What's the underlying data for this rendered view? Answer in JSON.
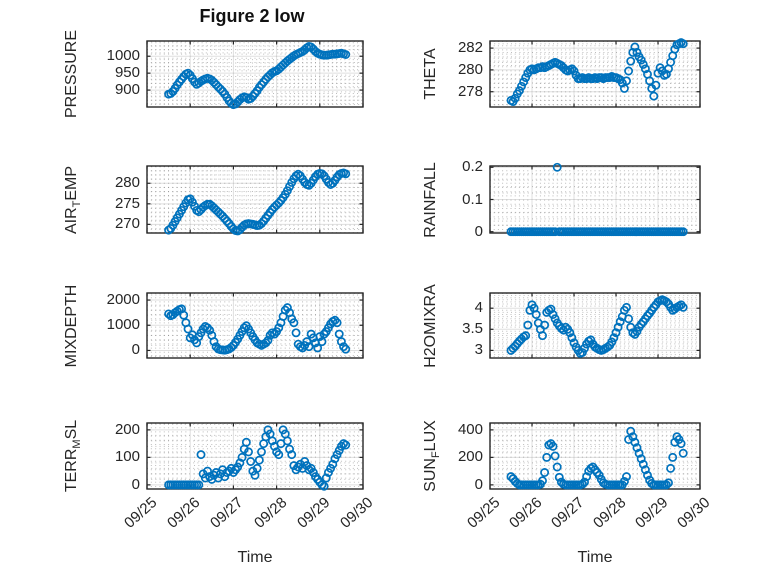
{
  "title": "Figure 2 low",
  "marker_color": "#0072BD",
  "axis": {
    "xlabel": "Time",
    "xlim": [
      0,
      5
    ],
    "x_unit": "days since 09/25",
    "xticks": [
      0,
      1,
      2,
      3,
      4,
      5
    ],
    "xticklabels": [
      "09/25",
      "09/26",
      "09/27",
      "09/28",
      "09/29",
      "09/30"
    ],
    "grid": "on",
    "minor_grid": "dotted"
  },
  "chart_data": [
    {
      "type": "scatter",
      "name": "pressure",
      "row": 0,
      "col": 0,
      "ylabel": "PRESSURE",
      "ylabel_parts": [
        {
          "t": "PRESSURE",
          "sub": false
        }
      ],
      "ylim": [
        850,
        1045
      ],
      "yticks": [
        900,
        950,
        1000
      ],
      "yticklabels": [
        "900",
        "950",
        "1000"
      ],
      "x_start": 0.5,
      "x_step": 0.05,
      "values": [
        888,
        890,
        896,
        905,
        915,
        924,
        932,
        940,
        947,
        950,
        944,
        934,
        924,
        917,
        921,
        926,
        930,
        933,
        935,
        933,
        929,
        923,
        916,
        909,
        903,
        896,
        888,
        878,
        868,
        861,
        857,
        859,
        865,
        872,
        877,
        880,
        878,
        873,
        875,
        882,
        890,
        898,
        908,
        916,
        924,
        932,
        939,
        945,
        951,
        955,
        957,
        962,
        968,
        974,
        980,
        986,
        991,
        996,
        1001,
        1005,
        1008,
        1011,
        1014,
        1019,
        1025,
        1029,
        1027,
        1021,
        1014,
        1009,
        1006,
        1004,
        1003,
        1003,
        1004,
        1005,
        1006,
        1006,
        1007,
        1008,
        1009,
        1007,
        1005
      ]
    },
    {
      "type": "scatter",
      "name": "theta",
      "row": 0,
      "col": 1,
      "ylabel": "THETA",
      "ylabel_parts": [
        {
          "t": "THETA",
          "sub": false
        }
      ],
      "ylim": [
        276.6,
        282.65
      ],
      "yticks": [
        278,
        280,
        282
      ],
      "yticklabels": [
        "278",
        "280",
        "282"
      ],
      "x_start": 0.5,
      "x_step": 0.05,
      "values": [
        277.2,
        277.1,
        277.4,
        277.8,
        278.1,
        278.5,
        278.9,
        279.3,
        279.7,
        280.0,
        280.1,
        280.0,
        280.1,
        280.2,
        280.2,
        280.3,
        280.2,
        280.3,
        280.4,
        280.5,
        280.6,
        280.7,
        280.6,
        280.5,
        280.4,
        280.2,
        280.0,
        279.9,
        280.0,
        280.1,
        279.9,
        279.5,
        279.2,
        279.2,
        279.3,
        279.2,
        279.2,
        279.3,
        279.2,
        279.2,
        279.3,
        279.2,
        279.3,
        279.3,
        279.2,
        279.3,
        279.3,
        279.3,
        279.4,
        279.3,
        279.3,
        279.2,
        279.1,
        278.8,
        278.3,
        279.0,
        279.9,
        280.8,
        281.6,
        282.1,
        281.6,
        281.2,
        280.9,
        280.5,
        280.1,
        279.6,
        279.0,
        278.3,
        277.6,
        278.6,
        279.7,
        280.2,
        279.9,
        279.5,
        279.6,
        280.1,
        280.7,
        281.3,
        281.9,
        282.3,
        282.4,
        282.5,
        282.4
      ]
    },
    {
      "type": "scatter",
      "name": "air_temp",
      "row": 1,
      "col": 0,
      "ylabel": "AIR_TEMP",
      "ylabel_parts": [
        {
          "t": "AIR",
          "sub": false
        },
        {
          "t": "T",
          "sub": true
        },
        {
          "t": "EMP",
          "sub": false
        }
      ],
      "ylim": [
        267.9,
        284.2
      ],
      "yticks": [
        270,
        275,
        280
      ],
      "yticklabels": [
        "270",
        "275",
        "280"
      ],
      "x_start": 0.5,
      "x_step": 0.05,
      "values": [
        268.6,
        269.0,
        269.8,
        270.7,
        271.6,
        272.5,
        273.4,
        274.3,
        275.2,
        276.0,
        276.2,
        275.4,
        274.4,
        273.4,
        273.1,
        273.6,
        274.2,
        274.6,
        274.9,
        274.9,
        274.5,
        274.0,
        273.5,
        273.0,
        272.5,
        272.0,
        271.4,
        270.8,
        270.2,
        269.5,
        268.9,
        268.5,
        268.4,
        268.7,
        269.3,
        269.8,
        270.1,
        270.2,
        270.1,
        270.0,
        269.9,
        269.7,
        269.8,
        270.2,
        270.8,
        271.5,
        272.2,
        272.9,
        273.6,
        274.2,
        274.7,
        275.2,
        275.8,
        276.5,
        277.3,
        278.2,
        279.2,
        280.2,
        281.1,
        281.8,
        282.2,
        281.8,
        281.0,
        280.2,
        279.7,
        279.5,
        280.0,
        280.8,
        281.6,
        282.2,
        282.4,
        282.3,
        281.8,
        281.0,
        280.2,
        279.7,
        280.0,
        280.7,
        281.5,
        282.1,
        282.4,
        282.5,
        282.3
      ]
    },
    {
      "type": "scatter",
      "name": "rainfall",
      "row": 1,
      "col": 1,
      "ylabel": "RAINFALL",
      "ylabel_parts": [
        {
          "t": "RAINFALL",
          "sub": false
        }
      ],
      "ylim": [
        -0.004,
        0.204
      ],
      "yticks": [
        0,
        0.1,
        0.2
      ],
      "yticklabels": [
        "0",
        "0.1",
        "0.2"
      ],
      "x_start": 0.5,
      "x_step": 0.05,
      "values": [
        0,
        0,
        0,
        0,
        0,
        0,
        0,
        0,
        0,
        0,
        0,
        0,
        0,
        0,
        0,
        0,
        0,
        0,
        0,
        0,
        0,
        0,
        0.2,
        0,
        0,
        0,
        0,
        0,
        0,
        0,
        0,
        0,
        0,
        0,
        0,
        0,
        0,
        0,
        0,
        0,
        0,
        0,
        0,
        0,
        0,
        0,
        0,
        0,
        0,
        0,
        0,
        0,
        0,
        0,
        0,
        0,
        0,
        0,
        0,
        0,
        0,
        0,
        0,
        0,
        0,
        0,
        0,
        0,
        0,
        0,
        0,
        0,
        0,
        0,
        0,
        0,
        0,
        0,
        0,
        0,
        0,
        0,
        0
      ]
    },
    {
      "type": "scatter",
      "name": "mixdepth",
      "row": 2,
      "col": 0,
      "ylabel": "MIXDEPTH",
      "ylabel_parts": [
        {
          "t": "MIXDEPTH",
          "sub": false
        }
      ],
      "ylim": [
        -300,
        2280
      ],
      "yticks": [
        0,
        1000,
        2000
      ],
      "yticklabels": [
        "0",
        "1000",
        "2000"
      ],
      "x_start": 0.5,
      "x_step": 0.05,
      "values": [
        1450,
        1380,
        1420,
        1500,
        1560,
        1620,
        1650,
        1400,
        1100,
        850,
        500,
        620,
        420,
        300,
        550,
        700,
        850,
        950,
        900,
        800,
        600,
        350,
        150,
        60,
        30,
        20,
        10,
        30,
        60,
        120,
        200,
        320,
        450,
        600,
        750,
        900,
        980,
        850,
        700,
        550,
        420,
        300,
        250,
        200,
        250,
        300,
        400,
        600,
        700,
        650,
        750,
        900,
        1100,
        1350,
        1600,
        1700,
        1500,
        1250,
        1100,
        700,
        250,
        150,
        100,
        200,
        350,
        150,
        650,
        500,
        300,
        100,
        550,
        350,
        650,
        750,
        900,
        1050,
        1150,
        1200,
        1100,
        650,
        350,
        150,
        50
      ]
    },
    {
      "type": "scatter",
      "name": "h2omixra",
      "row": 2,
      "col": 1,
      "ylabel": "H2OMIXRA",
      "ylabel_parts": [
        {
          "t": "H2OMIXRA",
          "sub": false
        }
      ],
      "ylim": [
        2.82,
        4.36
      ],
      "yticks": [
        3,
        3.5,
        4
      ],
      "yticklabels": [
        "3",
        "3.5",
        "4"
      ],
      "x_start": 0.5,
      "x_step": 0.05,
      "values": [
        3.0,
        3.05,
        3.1,
        3.16,
        3.22,
        3.27,
        3.32,
        3.35,
        3.6,
        3.95,
        4.08,
        4.0,
        3.85,
        3.65,
        3.5,
        3.35,
        3.6,
        3.9,
        3.95,
        3.98,
        3.85,
        3.75,
        3.65,
        3.58,
        3.52,
        3.48,
        3.55,
        3.5,
        3.42,
        3.3,
        3.18,
        3.08,
        3.0,
        2.93,
        2.95,
        3.05,
        3.15,
        3.22,
        3.25,
        3.15,
        3.08,
        3.05,
        3.02,
        3.0,
        3.02,
        3.05,
        3.08,
        3.12,
        3.2,
        3.3,
        3.42,
        3.55,
        3.68,
        3.8,
        3.95,
        4.02,
        3.75,
        3.55,
        3.42,
        3.38,
        3.45,
        3.55,
        3.62,
        3.68,
        3.75,
        3.82,
        3.88,
        3.95,
        4.02,
        4.08,
        4.15,
        4.18,
        4.2,
        4.18,
        4.15,
        4.1,
        4.02,
        3.95,
        3.98,
        4.02,
        4.05,
        4.08,
        4.02
      ]
    },
    {
      "type": "scatter",
      "name": "terr_msl",
      "row": 3,
      "col": 0,
      "ylabel": "TERR_MSL",
      "ylabel_parts": [
        {
          "t": "TERR",
          "sub": false
        },
        {
          "t": "M",
          "sub": true
        },
        {
          "t": "SL",
          "sub": false
        }
      ],
      "ylim": [
        -15,
        225
      ],
      "yticks": [
        0,
        100,
        200
      ],
      "yticklabels": [
        "0",
        "100",
        "200"
      ],
      "x_start": 0.5,
      "x_step": 0.05,
      "values": [
        0,
        0,
        0,
        0,
        0,
        0,
        0,
        0,
        0,
        0,
        0,
        0,
        0,
        0,
        0,
        110,
        40,
        25,
        50,
        30,
        20,
        35,
        45,
        25,
        40,
        55,
        30,
        45,
        50,
        60,
        45,
        55,
        65,
        80,
        100,
        130,
        155,
        120,
        85,
        50,
        35,
        60,
        90,
        120,
        150,
        175,
        200,
        185,
        160,
        140,
        120,
        110,
        150,
        200,
        185,
        160,
        130,
        110,
        70,
        55,
        65,
        75,
        60,
        85,
        70,
        55,
        60,
        45,
        30,
        20,
        10,
        0,
        -5,
        25,
        45,
        60,
        75,
        95,
        110,
        125,
        140,
        150,
        145
      ]
    },
    {
      "type": "scatter",
      "name": "sun_flux",
      "row": 3,
      "col": 1,
      "ylabel": "SUN_FLUX",
      "ylabel_parts": [
        {
          "t": "SUN",
          "sub": false
        },
        {
          "t": "F",
          "sub": true
        },
        {
          "t": "LUX",
          "sub": false
        }
      ],
      "ylim": [
        -30,
        450
      ],
      "yticks": [
        0,
        200,
        400
      ],
      "yticklabels": [
        "0",
        "200",
        "400"
      ],
      "x_start": 0.5,
      "x_step": 0.05,
      "values": [
        60,
        45,
        25,
        10,
        0,
        0,
        0,
        0,
        0,
        0,
        0,
        0,
        0,
        0,
        5,
        30,
        90,
        200,
        290,
        300,
        280,
        210,
        130,
        55,
        20,
        5,
        0,
        0,
        0,
        0,
        0,
        0,
        0,
        0,
        5,
        20,
        60,
        100,
        120,
        130,
        110,
        90,
        70,
        40,
        15,
        5,
        0,
        0,
        0,
        0,
        0,
        0,
        0,
        0,
        25,
        60,
        330,
        390,
        350,
        310,
        270,
        230,
        190,
        150,
        110,
        70,
        35,
        10,
        0,
        0,
        0,
        0,
        0,
        0,
        0,
        15,
        120,
        200,
        310,
        350,
        330,
        300,
        230
      ]
    }
  ]
}
